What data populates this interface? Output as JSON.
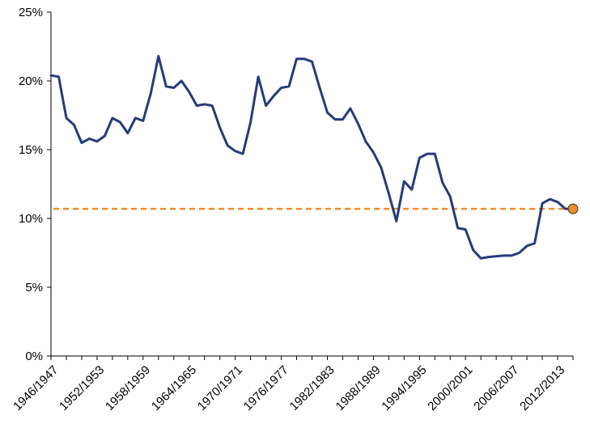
{
  "chart_data": {
    "type": "line",
    "title": "",
    "xlabel": "",
    "ylabel": "",
    "ylim": [
      0,
      25
    ],
    "y_ticks": [
      "0%",
      "5%",
      "10%",
      "15%",
      "20%",
      "25%"
    ],
    "y_tick_values": [
      0,
      5,
      10,
      15,
      20,
      25
    ],
    "grid": false,
    "x_tick_labels": [
      "1946/1947",
      "1952/1953",
      "1958/1959",
      "1964/1965",
      "1970/1971",
      "1976/1977",
      "1982/1983",
      "1988/1989",
      "1994/1995",
      "2000/2001",
      "2006/2007",
      "2012/2013"
    ],
    "x_start_year": 1946,
    "x_end_year": 2014,
    "series": [
      {
        "color": "#263b7a",
        "x": [
          1946,
          1947,
          1948,
          1949,
          1950,
          1951,
          1952,
          1953,
          1954,
          1955,
          1956,
          1957,
          1958,
          1959,
          1960,
          1961,
          1962,
          1963,
          1964,
          1965,
          1966,
          1967,
          1968,
          1969,
          1970,
          1971,
          1972,
          1973,
          1974,
          1975,
          1976,
          1977,
          1978,
          1979,
          1980,
          1981,
          1982,
          1983,
          1984,
          1985,
          1986,
          1987,
          1988,
          1989,
          1990,
          1991,
          1992,
          1993,
          1994,
          1995,
          1996,
          1997,
          1998,
          1999,
          2000,
          2001,
          2002,
          2003,
          2004,
          2005,
          2006,
          2007,
          2008,
          2009,
          2010,
          2011,
          2012,
          2013,
          2014
        ],
        "values": [
          20.4,
          20.3,
          17.3,
          16.8,
          15.5,
          15.8,
          15.6,
          16.0,
          17.3,
          17.0,
          16.2,
          17.3,
          17.1,
          19.1,
          21.8,
          19.6,
          19.5,
          20.0,
          19.2,
          18.2,
          18.3,
          18.2,
          16.6,
          15.3,
          14.9,
          14.7,
          17.0,
          20.3,
          18.2,
          18.9,
          19.5,
          19.6,
          21.6,
          21.6,
          21.4,
          19.5,
          17.7,
          17.2,
          17.2,
          18.0,
          16.9,
          15.6,
          14.8,
          13.7,
          11.8,
          9.8,
          12.7,
          12.1,
          14.4,
          14.7,
          14.7,
          12.6,
          11.6,
          9.3,
          9.2,
          7.7,
          7.1,
          7.2,
          7.25,
          7.3,
          7.3,
          7.5,
          8.0,
          8.2,
          11.1,
          11.4,
          11.2,
          10.7,
          10.7
        ]
      }
    ],
    "reference_line": {
      "value": 10.7,
      "color": "#f28c28",
      "style": "dashed"
    },
    "highlight_point": {
      "x": 2014,
      "value": 10.7,
      "color": "#f28c28"
    }
  }
}
